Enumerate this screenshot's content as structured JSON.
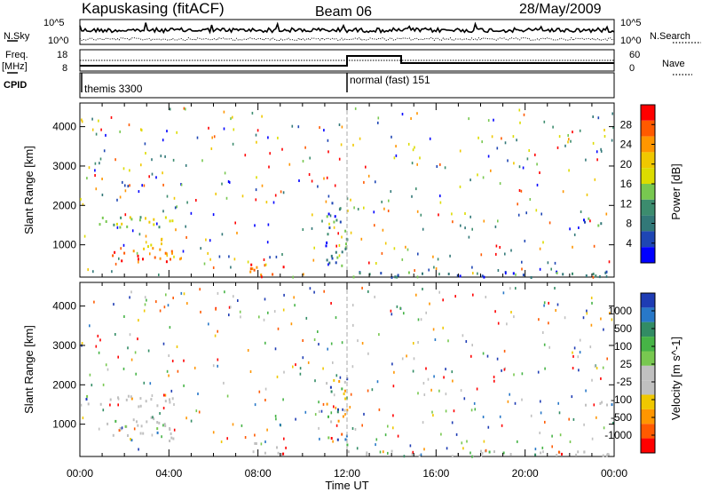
{
  "header": {
    "station": "Kapuskasing (fitACF)",
    "beam": "Beam 06",
    "date": "28/May/2009"
  },
  "left_labels": {
    "nsky": "N.Sky",
    "freq_top": "Freq.",
    "freq_unit": "[MHz]",
    "cpid": "CPID"
  },
  "right_labels": {
    "nsearch": "N.Search",
    "nave": "Nave"
  },
  "noise_axis": {
    "left_ticks": [
      "10^5",
      "10^0"
    ],
    "right_ticks": [
      "10^5",
      "10^0"
    ]
  },
  "freq_axis": {
    "left_ticks": [
      "18",
      "8"
    ],
    "right_ticks": [
      "60",
      "0"
    ]
  },
  "cpid_labels": [
    "themis 3300",
    "normal (fast) 151"
  ],
  "x_axis": {
    "label": "Time UT",
    "ticks": [
      "00:00",
      "04:00",
      "08:00",
      "12:00",
      "16:00",
      "20:00",
      "00:00"
    ]
  },
  "chart_data": [
    {
      "type": "scatter",
      "title": "Power",
      "ylabel": "Slant Range [km]",
      "ylim": [
        180,
        4600
      ],
      "y_ticks": [
        "1000",
        "2000",
        "3000",
        "4000"
      ],
      "xlim_hours": [
        0,
        24
      ],
      "colorbar": {
        "label": "Power [dB]",
        "ticks": [
          "28",
          "24",
          "20",
          "16",
          "12",
          "8",
          "4"
        ],
        "colors": [
          "#ff0000",
          "#ff5a00",
          "#ff9600",
          "#f0c800",
          "#dcdc00",
          "#78c850",
          "#3c8c6e",
          "#327878",
          "#1e46b4",
          "#0000ff"
        ]
      },
      "clusters": [
        {
          "t": [
            0.0,
            4.2
          ],
          "range": [
            1450,
            1750
          ],
          "level": "mid"
        },
        {
          "t": [
            1.1,
            4.2
          ],
          "range": [
            600,
            900
          ],
          "level": "high"
        },
        {
          "t": [
            2.8,
            4.2
          ],
          "range": [
            850,
            1200
          ],
          "level": "mid-high"
        },
        {
          "t": [
            7.6,
            9.4
          ],
          "range": [
            250,
            550
          ],
          "level": "high"
        },
        {
          "t": [
            11.0,
            12.0
          ],
          "range": [
            500,
            2200
          ],
          "level": "low"
        },
        {
          "t": [
            12.0,
            24.0
          ],
          "range": [
            200,
            350
          ],
          "level": "low"
        },
        {
          "t": [
            22.5,
            24.0
          ],
          "range": [
            1500,
            1700
          ],
          "level": "low"
        }
      ]
    },
    {
      "type": "scatter",
      "title": "Velocity",
      "ylabel": "Slant Range [km]",
      "ylim": [
        180,
        4600
      ],
      "y_ticks": [
        "1000",
        "2000",
        "3000",
        "4000"
      ],
      "xlim_hours": [
        0,
        24
      ],
      "colorbar": {
        "label": "Velocity [m s^-1]",
        "ticks": [
          "1000",
          "500",
          "100",
          "25",
          "-25",
          "-100",
          "-500",
          "-1000"
        ],
        "colors": [
          "#1e3cb4",
          "#2878c8",
          "#328c64",
          "#46b446",
          "#78c850",
          "#c0c0c0",
          "#c0c0c0",
          "#f0c800",
          "#ff9600",
          "#ff5a00",
          "#ff0000"
        ]
      },
      "clusters": [
        {
          "t": [
            0.0,
            4.2
          ],
          "range": [
            1450,
            1750
          ],
          "level": "ground"
        },
        {
          "t": [
            1.1,
            4.2
          ],
          "range": [
            600,
            1200
          ],
          "level": "ground"
        },
        {
          "t": [
            7.6,
            9.4
          ],
          "range": [
            250,
            550
          ],
          "level": "ground"
        },
        {
          "t": [
            11.0,
            12.0
          ],
          "range": [
            500,
            2200
          ],
          "level": "mixed"
        },
        {
          "t": [
            12.0,
            24.0
          ],
          "range": [
            200,
            350
          ],
          "level": "ground"
        },
        {
          "t": [
            22.5,
            24.0
          ],
          "range": [
            1500,
            1700
          ],
          "level": "ground"
        }
      ]
    }
  ]
}
